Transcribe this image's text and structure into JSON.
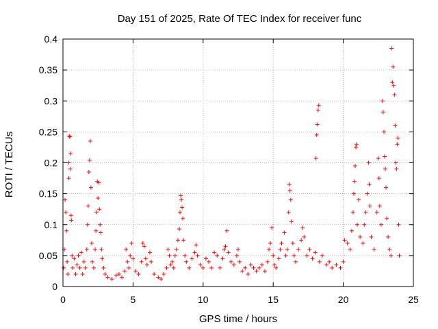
{
  "chart_data": {
    "type": "scatter",
    "title": "Day 151 of 2025, Rate Of TEC Index for receiver func",
    "xlabel": "GPS time / hours",
    "ylabel": "ROTI / TECUs",
    "xlim": [
      0,
      25
    ],
    "ylim": [
      0,
      0.4
    ],
    "xticks": [
      0,
      5,
      10,
      15,
      20,
      25
    ],
    "xtick_labels": [
      "0",
      "5",
      "10",
      "15",
      "20",
      "25"
    ],
    "yticks": [
      0,
      0.05,
      0.1,
      0.15,
      0.2,
      0.25,
      0.3,
      0.35,
      0.4
    ],
    "ytick_labels": [
      "0",
      "0.05",
      "0.1",
      "0.15",
      "0.2",
      "0.25",
      "0.3",
      "0.35",
      "0.4"
    ],
    "grid": true,
    "marker": "+",
    "series": [
      {
        "color": "#ff0000",
        "points": [
          [
            0.05,
            0.03
          ],
          [
            0.1,
            0.06
          ],
          [
            0.15,
            0.14
          ],
          [
            0.2,
            0.12
          ],
          [
            0.25,
            0.09
          ],
          [
            0.3,
            0.04
          ],
          [
            0.35,
            0.02
          ],
          [
            0.4,
            0.2
          ],
          [
            0.42,
            0.175
          ],
          [
            0.45,
            0.243
          ],
          [
            0.5,
            0.242
          ],
          [
            0.52,
            0.19
          ],
          [
            0.55,
            0.215
          ],
          [
            0.58,
            0.115
          ],
          [
            0.6,
            0.107
          ],
          [
            0.65,
            0.05
          ],
          [
            0.7,
            0.03
          ],
          [
            0.8,
            0.045
          ],
          [
            0.9,
            0.02
          ],
          [
            1.0,
            0.035
          ],
          [
            1.1,
            0.05
          ],
          [
            1.2,
            0.03
          ],
          [
            1.3,
            0.055
          ],
          [
            1.4,
            0.02
          ],
          [
            1.5,
            0.04
          ],
          [
            1.6,
            0.03
          ],
          [
            1.7,
            0.06
          ],
          [
            1.75,
            0.1
          ],
          [
            1.8,
            0.13
          ],
          [
            1.85,
            0.185
          ],
          [
            1.9,
            0.204
          ],
          [
            1.95,
            0.235
          ],
          [
            2.0,
            0.16
          ],
          [
            2.05,
            0.07
          ],
          [
            2.1,
            0.04
          ],
          [
            2.2,
            0.03
          ],
          [
            2.3,
            0.06
          ],
          [
            2.35,
            0.09
          ],
          [
            2.4,
            0.12
          ],
          [
            2.45,
            0.17
          ],
          [
            2.5,
            0.143
          ],
          [
            2.55,
            0.168
          ],
          [
            2.6,
            0.125
          ],
          [
            2.65,
            0.1
          ],
          [
            2.7,
            0.087
          ],
          [
            2.75,
            0.06
          ],
          [
            2.8,
            0.045
          ],
          [
            2.9,
            0.03
          ],
          [
            3.0,
            0.02
          ],
          [
            3.2,
            0.015
          ],
          [
            3.5,
            0.012
          ],
          [
            3.8,
            0.018
          ],
          [
            4.0,
            0.02
          ],
          [
            4.2,
            0.015
          ],
          [
            4.4,
            0.025
          ],
          [
            4.5,
            0.06
          ],
          [
            4.6,
            0.04
          ],
          [
            4.7,
            0.03
          ],
          [
            4.8,
            0.05
          ],
          [
            4.9,
            0.07
          ],
          [
            5.0,
            0.045
          ],
          [
            5.2,
            0.025
          ],
          [
            5.4,
            0.02
          ],
          [
            5.6,
            0.04
          ],
          [
            5.7,
            0.07
          ],
          [
            5.8,
            0.065
          ],
          [
            5.9,
            0.045
          ],
          [
            6.0,
            0.035
          ],
          [
            6.2,
            0.055
          ],
          [
            6.3,
            0.04
          ],
          [
            6.5,
            0.02
          ],
          [
            6.8,
            0.015
          ],
          [
            7.0,
            0.012
          ],
          [
            7.2,
            0.02
          ],
          [
            7.4,
            0.03
          ],
          [
            7.5,
            0.06
          ],
          [
            7.6,
            0.05
          ],
          [
            7.7,
            0.035
          ],
          [
            7.8,
            0.04
          ],
          [
            7.9,
            0.03
          ],
          [
            8.0,
            0.05
          ],
          [
            8.1,
            0.06
          ],
          [
            8.2,
            0.075
          ],
          [
            8.3,
            0.093
          ],
          [
            8.35,
            0.12
          ],
          [
            8.4,
            0.147
          ],
          [
            8.45,
            0.14
          ],
          [
            8.5,
            0.128
          ],
          [
            8.55,
            0.11
          ],
          [
            8.6,
            0.075
          ],
          [
            8.7,
            0.05
          ],
          [
            8.8,
            0.04
          ],
          [
            9.0,
            0.03
          ],
          [
            9.2,
            0.045
          ],
          [
            9.4,
            0.055
          ],
          [
            9.5,
            0.067
          ],
          [
            9.6,
            0.05
          ],
          [
            9.8,
            0.035
          ],
          [
            10.0,
            0.03
          ],
          [
            10.2,
            0.045
          ],
          [
            10.4,
            0.04
          ],
          [
            10.6,
            0.03
          ],
          [
            10.8,
            0.055
          ],
          [
            11.0,
            0.05
          ],
          [
            11.2,
            0.03
          ],
          [
            11.4,
            0.045
          ],
          [
            11.5,
            0.06
          ],
          [
            11.6,
            0.065
          ],
          [
            11.7,
            0.09
          ],
          [
            11.8,
            0.055
          ],
          [
            12.0,
            0.04
          ],
          [
            12.2,
            0.035
          ],
          [
            12.4,
            0.05
          ],
          [
            12.5,
            0.06
          ],
          [
            12.6,
            0.04
          ],
          [
            12.8,
            0.025
          ],
          [
            13.0,
            0.03
          ],
          [
            13.2,
            0.02
          ],
          [
            13.4,
            0.035
          ],
          [
            13.6,
            0.03
          ],
          [
            13.8,
            0.025
          ],
          [
            14.0,
            0.03
          ],
          [
            14.2,
            0.035
          ],
          [
            14.4,
            0.025
          ],
          [
            14.6,
            0.04
          ],
          [
            14.7,
            0.06
          ],
          [
            14.8,
            0.07
          ],
          [
            14.9,
            0.095
          ],
          [
            15.0,
            0.05
          ],
          [
            15.1,
            0.035
          ],
          [
            15.2,
            0.03
          ],
          [
            15.4,
            0.045
          ],
          [
            15.5,
            0.06
          ],
          [
            15.6,
            0.07
          ],
          [
            15.8,
            0.087
          ],
          [
            15.9,
            0.05
          ],
          [
            16.0,
            0.06
          ],
          [
            16.1,
            0.12
          ],
          [
            16.15,
            0.165
          ],
          [
            16.2,
            0.155
          ],
          [
            16.25,
            0.14
          ],
          [
            16.3,
            0.105
          ],
          [
            16.4,
            0.07
          ],
          [
            16.5,
            0.05
          ],
          [
            16.6,
            0.04
          ],
          [
            16.8,
            0.06
          ],
          [
            17.0,
            0.075
          ],
          [
            17.1,
            0.095
          ],
          [
            17.2,
            0.08
          ],
          [
            17.4,
            0.05
          ],
          [
            17.6,
            0.06
          ],
          [
            17.8,
            0.045
          ],
          [
            18.0,
            0.055
          ],
          [
            18.05,
            0.207
          ],
          [
            18.1,
            0.245
          ],
          [
            18.15,
            0.262
          ],
          [
            18.2,
            0.285
          ],
          [
            18.25,
            0.293
          ],
          [
            18.3,
            0.04
          ],
          [
            18.5,
            0.05
          ],
          [
            18.8,
            0.035
          ],
          [
            19.0,
            0.04
          ],
          [
            19.2,
            0.03
          ],
          [
            19.5,
            0.035
          ],
          [
            19.8,
            0.03
          ],
          [
            20.0,
            0.04
          ],
          [
            20.1,
            0.075
          ],
          [
            20.3,
            0.07
          ],
          [
            20.5,
            0.06
          ],
          [
            20.6,
            0.09
          ],
          [
            20.7,
            0.12
          ],
          [
            20.75,
            0.15
          ],
          [
            20.8,
            0.17
          ],
          [
            20.85,
            0.195
          ],
          [
            20.9,
            0.225
          ],
          [
            20.95,
            0.23
          ],
          [
            21.0,
            0.1
          ],
          [
            21.1,
            0.14
          ],
          [
            21.2,
            0.08
          ],
          [
            21.4,
            0.07
          ],
          [
            21.5,
            0.1
          ],
          [
            21.6,
            0.12
          ],
          [
            21.7,
            0.15
          ],
          [
            21.8,
            0.2
          ],
          [
            21.85,
            0.165
          ],
          [
            21.9,
            0.13
          ],
          [
            22.0,
            0.08
          ],
          [
            22.2,
            0.06
          ],
          [
            22.4,
            0.12
          ],
          [
            22.5,
            0.207
          ],
          [
            22.55,
            0.175
          ],
          [
            22.6,
            0.13
          ],
          [
            22.7,
            0.1
          ],
          [
            22.8,
            0.3
          ],
          [
            22.85,
            0.282
          ],
          [
            22.9,
            0.25
          ],
          [
            22.95,
            0.21
          ],
          [
            23.0,
            0.19
          ],
          [
            23.05,
            0.16
          ],
          [
            23.1,
            0.11
          ],
          [
            23.2,
            0.08
          ],
          [
            23.3,
            0.06
          ],
          [
            23.4,
            0.05
          ],
          [
            23.45,
            0.385
          ],
          [
            23.5,
            0.33
          ],
          [
            23.55,
            0.355
          ],
          [
            23.6,
            0.325
          ],
          [
            23.65,
            0.31
          ],
          [
            23.7,
            0.26
          ],
          [
            23.75,
            0.2
          ],
          [
            23.8,
            0.19
          ],
          [
            23.85,
            0.23
          ],
          [
            23.9,
            0.24
          ],
          [
            23.95,
            0.1
          ],
          [
            24.0,
            0.05
          ]
        ]
      }
    ]
  }
}
